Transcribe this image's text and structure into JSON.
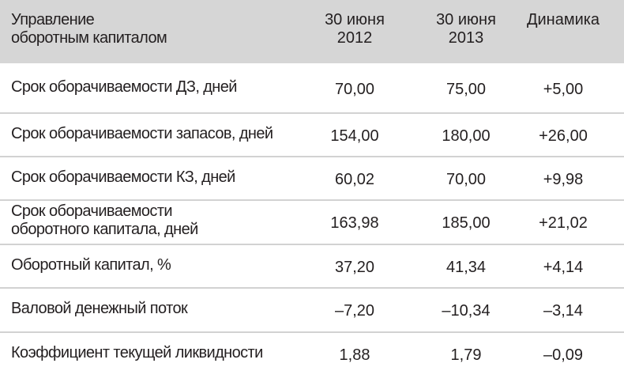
{
  "header": {
    "title_line1": "Управление",
    "title_line2": "оборотным капиталом",
    "col1_line1": "30 июня",
    "col1_line2": "2012",
    "col2_line1": "30 июня",
    "col2_line2": "2013",
    "col3": "Динамика"
  },
  "rows": [
    {
      "label": "Срок оборачиваемости ДЗ, дней",
      "v2012": "70,00",
      "v2013": "75,00",
      "change": "+5,00"
    },
    {
      "label": "Срок оборачиваемости запасов, дней",
      "v2012": "154,00",
      "v2013": "180,00",
      "change": "+26,00"
    },
    {
      "label": "Срок оборачиваемости КЗ, дней",
      "v2012": "60,02",
      "v2013": "70,00",
      "change": "+9,98"
    },
    {
      "label_line1": "Срок оборачиваемости",
      "label_line2": "оборотного капитала, дней",
      "v2012": "163,98",
      "v2013": "185,00",
      "change": "+21,02"
    },
    {
      "label": "Оборотный капитал, %",
      "v2012": "37,20",
      "v2013": "41,34",
      "change": "+4,14"
    },
    {
      "label": "Валовой денежный поток",
      "v2012": "–7,20",
      "v2013": "–10,34",
      "change": "–3,14"
    },
    {
      "label": "Коэффициент текущей ликвидности",
      "v2012": "1,88",
      "v2013": "1,79",
      "change": "–0,09"
    }
  ],
  "colors": {
    "header_bg": "#d6d6d6",
    "separator": "#d2d2d2",
    "text": "#231f20"
  }
}
